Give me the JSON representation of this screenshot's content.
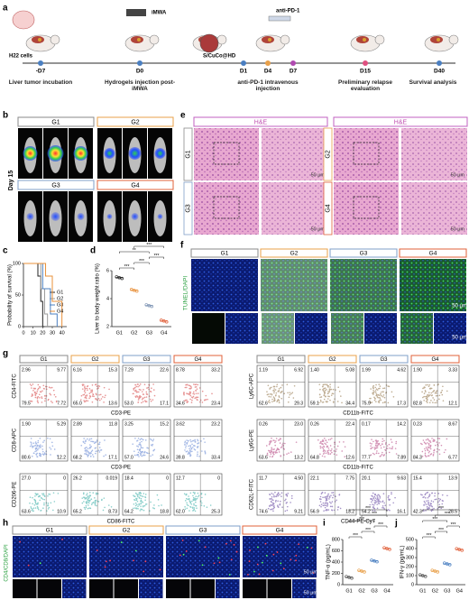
{
  "panel_labels": [
    "a",
    "b",
    "c",
    "d",
    "e",
    "f",
    "g",
    "h",
    "i",
    "j"
  ],
  "groups": [
    "G1",
    "G2",
    "G3",
    "G4"
  ],
  "timeline": {
    "annotations": {
      "cells": "H22 cells",
      "device": "iMWA",
      "hydrogel": "S/CuCo@HD",
      "antibody": "anti-PD-1"
    },
    "days": [
      "-D7",
      "D0",
      "D1",
      "D4",
      "D7",
      "D15",
      "D40"
    ],
    "stages": [
      "Liver tumor incubation",
      "Hydrogels injection post-iMWA",
      "anti-PD-1 intravenous injection",
      "Preliminary relapse evaluation",
      "Survival analysis"
    ]
  },
  "imaging": {
    "day": "Day 15"
  },
  "histology": {
    "stain": "H&E",
    "scale": "50 μm"
  },
  "tunel": {
    "stain": "TUNEL/DAPI",
    "scale": "50 μm"
  },
  "if_stain": {
    "stain": "CD4/CD8/DAPI",
    "scale": "50 μm"
  },
  "flow": {
    "left": [
      {
        "y_label": "CD4-FITC",
        "x_label": "CD3-PE",
        "quadrants": [
          [
            "2.96",
            "9.77",
            "79.5",
            "7.72"
          ],
          [
            "6.16",
            "15.3",
            "65.0",
            "13.6"
          ],
          [
            "7.29",
            "22.6",
            "53.0",
            "17.1"
          ],
          [
            "8.78",
            "33.2",
            "34.6",
            "23.4"
          ]
        ]
      },
      {
        "y_label": "CD8-APC",
        "x_label": "CD3-PE",
        "quadrants": [
          [
            "1.90",
            "5.29",
            "80.6",
            "12.2"
          ],
          [
            "2.89",
            "11.8",
            "68.2",
            "17.1"
          ],
          [
            "3.25",
            "15.2",
            "57.0",
            "24.6"
          ],
          [
            "3.62",
            "23.2",
            "39.8",
            "33.4"
          ]
        ]
      },
      {
        "y_label": "CD206-PE",
        "x_label": "CD86-FITC",
        "quadrants": [
          [
            "27.0",
            "0",
            "63.6",
            "10.9"
          ],
          [
            "26.2",
            "0.019",
            "65.2",
            "8.73"
          ],
          [
            "18.4",
            "0",
            "64.2",
            "18.8"
          ],
          [
            "12.7",
            "0",
            "62.0",
            "25.3"
          ]
        ]
      }
    ],
    "right": [
      {
        "y_label": "Ly6C-APC",
        "x_label": "CD11b-FITC",
        "quadrants": [
          [
            "1.19",
            "6.92",
            "62.6",
            "29.3"
          ],
          [
            "1.40",
            "5.08",
            "59.1",
            "34.4"
          ],
          [
            "1.99",
            "4.62",
            "75.9",
            "17.3"
          ],
          [
            "1.90",
            "3.33",
            "82.8",
            "12.1"
          ]
        ]
      },
      {
        "y_label": "Ly6G-PE",
        "x_label": "CD11b-FITC",
        "quadrants": [
          [
            "0.26",
            "23.0",
            "63.6",
            "13.2"
          ],
          [
            "0.26",
            "22.4",
            "64.8",
            "12.6"
          ],
          [
            "0.17",
            "14.2",
            "77.7",
            "7.89"
          ],
          [
            "0.23",
            "8.67",
            "84.3",
            "6.77"
          ]
        ]
      },
      {
        "y_label": "CD62L-FITC",
        "x_label": "CD44-PE-Cy7",
        "quadrants": [
          [
            "11.7",
            "4.50",
            "74.6",
            "9.21"
          ],
          [
            "22.1",
            "7.75",
            "56.9",
            "13.2"
          ],
          [
            "20.1",
            "9.63",
            "54.2",
            "16.1"
          ],
          [
            "15.4",
            "13.9",
            "42.3",
            "28.5"
          ]
        ]
      }
    ]
  },
  "chart_data": [
    {
      "type": "line",
      "ylabel": "Probability of survival (%)",
      "xlim": [
        0,
        45
      ],
      "ylim": [
        0,
        100
      ],
      "xticks": [
        0,
        10,
        20,
        30,
        40
      ],
      "yticks": [
        0,
        50,
        100
      ],
      "legend": "right",
      "series": [
        {
          "name": "G1",
          "color": "#222222",
          "x": [
            0,
            15,
            15,
            18,
            18,
            20,
            20,
            22
          ],
          "values": [
            100,
            100,
            80,
            80,
            40,
            40,
            0,
            0
          ]
        },
        {
          "name": "G2",
          "color": "#9a9a9a",
          "x": [
            0,
            18,
            18,
            22,
            22,
            25,
            25
          ],
          "values": [
            100,
            100,
            60,
            60,
            20,
            20,
            0
          ]
        },
        {
          "name": "G3",
          "color": "#4a7fc1",
          "x": [
            0,
            20,
            20,
            28,
            28,
            35,
            35
          ],
          "values": [
            100,
            100,
            60,
            60,
            20,
            20,
            0
          ]
        },
        {
          "name": "G4",
          "color": "#e8903a",
          "x": [
            0,
            23,
            23,
            30,
            30,
            40,
            40
          ],
          "values": [
            100,
            100,
            80,
            80,
            40,
            40,
            0
          ]
        }
      ]
    },
    {
      "type": "dot",
      "ylabel": "Liver to body weight ratio (%)",
      "categories": [
        "G1",
        "G2",
        "G3",
        "G4"
      ],
      "values": [
        5.5,
        4.6,
        3.5,
        2.4
      ],
      "colors": [
        "#222222",
        "#e8903a",
        "#7f95b5",
        "#e0603a"
      ],
      "ylim": [
        2,
        6
      ],
      "yticks": [
        2,
        4,
        6
      ],
      "significance": [
        "***",
        "***",
        "***",
        "**",
        "***"
      ]
    },
    {
      "type": "dot",
      "ylabel": "TNF-α (pg/mL)",
      "categories": [
        "G1",
        "G2",
        "G3",
        "G4"
      ],
      "values": [
        130,
        240,
        420,
        640
      ],
      "colors": [
        "#555555",
        "#e8a04a",
        "#4a7fc1",
        "#e0603a"
      ],
      "ylim": [
        0,
        800
      ],
      "yticks": [
        0,
        200,
        400,
        600,
        800
      ],
      "significance": [
        "***",
        "***",
        "***",
        "***",
        "***",
        "***"
      ]
    },
    {
      "type": "dot",
      "ylabel": "IFN-γ (pg/mL)",
      "categories": [
        "G1",
        "G2",
        "G3",
        "G4"
      ],
      "values": [
        100,
        150,
        230,
        390
      ],
      "colors": [
        "#555555",
        "#e8a04a",
        "#4a7fc1",
        "#e0603a"
      ],
      "ylim": [
        0,
        500
      ],
      "yticks": [
        0,
        100,
        200,
        300,
        400,
        500
      ],
      "significance": [
        "***",
        "***",
        "***",
        "***",
        "***",
        "***"
      ]
    }
  ]
}
